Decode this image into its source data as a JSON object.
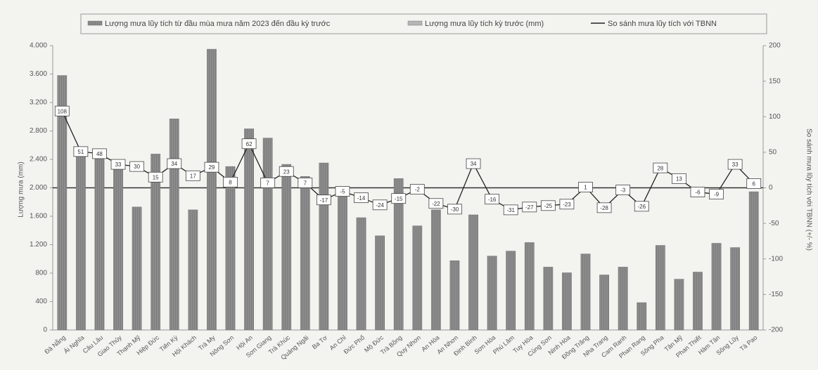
{
  "chart_data": {
    "type": "bar_line",
    "y_label": "Lượng mưa (mm)",
    "y2_label": "So sánh mưa lũy tích với TBNN (+/- %)",
    "categories": [
      "Đà Nẵng",
      "Ái Nghĩa",
      "Câu Lâu",
      "Giao Thủy",
      "Thạnh Mỹ",
      "Hiệp Đức",
      "Tiên Kỳ",
      "Hội Khách",
      "Trà My",
      "Nông Sơn",
      "Hội An",
      "Sơn Giang",
      "Trà Khúc",
      "Quảng Ngãi",
      "Ba Tơ",
      "An Chỉ",
      "Đức Phổ",
      "Mộ Đức",
      "Trà Bồng",
      "Quy Nhơn",
      "An Hòa",
      "An Nhơn",
      "Định Bình",
      "Sơn Hòa",
      "Phú Lâm",
      "Tuy Hòa",
      "Củng Sơn",
      "Ninh Hòa",
      "Đồng Trăng",
      "Nha Trang",
      "Cam Ranh",
      "Phan Rang",
      "Sông Pha",
      "Tân Mỹ",
      "Phan Thiết",
      "Hàm Tân",
      "Sông Lũy",
      "Tà Pao"
    ],
    "series": [
      {
        "name": "Lượng mưa lũy tích từ đầu mùa mưa năm 2023 đến đầu kỳ trước",
        "type": "bar",
        "color": "#8c8c8c",
        "values": [
          3580,
          2575,
          2500,
          2300,
          1730,
          2475,
          2970,
          1690,
          3950,
          2300,
          2830,
          2700,
          2330,
          2160,
          2350,
          1915,
          1580,
          1325,
          2130,
          1465,
          1690,
          975,
          1620,
          1040,
          1110,
          1230,
          885,
          805,
          1070,
          775,
          885,
          385,
          1190,
          715,
          815,
          1220,
          1160,
          1945
        ]
      },
      {
        "name": "Lượng mưa lũy tích kỳ trước (mm)",
        "type": "bar",
        "color": "#b5b5b5",
        "values": [
          null,
          null,
          null,
          null,
          null,
          null,
          null,
          null,
          null,
          null,
          null,
          null,
          null,
          null,
          null,
          null,
          null,
          null,
          null,
          null,
          null,
          null,
          null,
          null,
          null,
          null,
          null,
          null,
          null,
          null,
          null,
          null,
          null,
          null,
          null,
          null,
          null,
          null
        ]
      },
      {
        "name": "So sánh mưa lũy tích với TBNN",
        "type": "line",
        "axis": "y2",
        "color": "#222222",
        "values": [
          108,
          51,
          48,
          33,
          30,
          15,
          34,
          17,
          29,
          8,
          62,
          7,
          23,
          7,
          -17,
          -5,
          -14,
          -24,
          -15,
          -2,
          -22,
          -30,
          34,
          -16,
          -31,
          -27,
          -25,
          -23,
          1,
          -28,
          -3,
          -26,
          28,
          13,
          -6,
          -9,
          33,
          6
        ]
      }
    ],
    "ylim": [
      0,
      4000
    ],
    "yticks": [
      0,
      400,
      800,
      {
        "value": 1200,
        "label": "1.200"
      },
      {
        "value": 1600,
        "label": "1.600"
      },
      {
        "value": 2000,
        "label": "2.000"
      },
      {
        "value": 2400,
        "label": "2.400"
      },
      {
        "value": 2800,
        "label": "2.800"
      },
      {
        "value": 3200,
        "label": "3.200"
      },
      {
        "value": 3600,
        "label": "3.600"
      },
      {
        "value": 4000,
        "label": "4.000"
      }
    ],
    "y2lim": [
      -200,
      200
    ],
    "y2ticks": [
      -200,
      -150,
      -100,
      -50,
      0,
      50,
      100,
      150,
      200
    ],
    "legend": "top"
  }
}
